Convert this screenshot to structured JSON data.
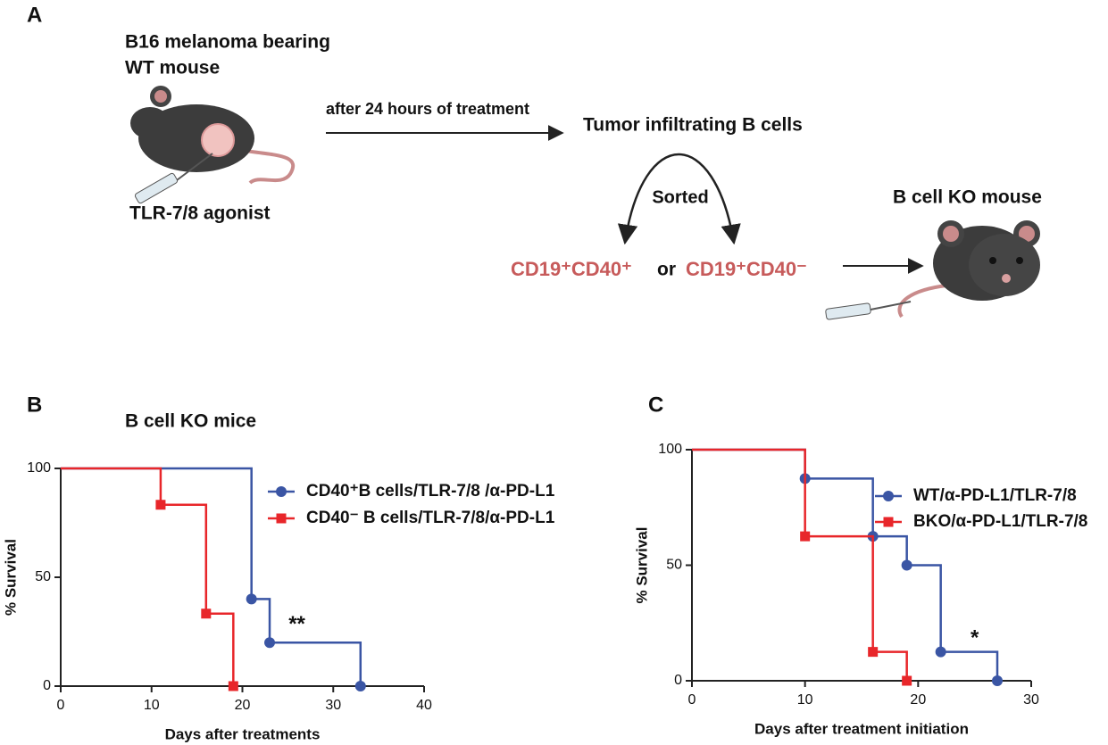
{
  "diagram": {
    "panel_label": "A",
    "mouse_title_line1": "B16 melanoma bearing",
    "mouse_title_line2": "WT mouse",
    "agonist": "TLR-7/8 agonist",
    "arrow_label": "after 24 hours of treatment",
    "cells": "Tumor infiltrating B cells",
    "sorted": "Sorted",
    "positive_cells": "CD19⁺CD40⁺",
    "or": "or",
    "negative_cells": "CD19⁺CD40⁻",
    "ko_mouse": "B cell KO mouse"
  },
  "chart_data": [
    {
      "type": "step",
      "panel_label": "B",
      "title": "B cell KO mice",
      "xlabel": "Days after treatments",
      "ylabel": "% Survival",
      "xlim": [
        0,
        40
      ],
      "xticks": [
        0,
        10,
        20,
        30,
        40
      ],
      "ylim": [
        0,
        100
      ],
      "yticks": [
        0,
        50,
        100
      ],
      "annotation": "**",
      "series": [
        {
          "name": "CD40⁺B cells/TLR-7/8 /α-PD-L1",
          "color": "#3a55a4",
          "marker": "circle",
          "x": [
            0,
            21,
            23,
            33
          ],
          "values": [
            100,
            40,
            20,
            0
          ]
        },
        {
          "name": "CD40⁻ B cells/TLR-7/8/α-PD-L1",
          "color": "#e8262a",
          "marker": "square",
          "x": [
            0,
            11,
            16,
            19
          ],
          "values": [
            100,
            83.3,
            33.3,
            0
          ]
        }
      ]
    },
    {
      "type": "step",
      "panel_label": "C",
      "xlabel": "Days after treatment initiation",
      "ylabel": "% Survival",
      "xlim": [
        0,
        30
      ],
      "xticks": [
        0,
        10,
        20,
        30
      ],
      "ylim": [
        0,
        100
      ],
      "yticks": [
        0,
        50,
        100
      ],
      "annotation": "*",
      "series": [
        {
          "name": "WT/α-PD-L1/TLR-7/8",
          "color": "#3a55a4",
          "marker": "circle",
          "x": [
            0,
            10,
            16,
            19,
            22,
            27
          ],
          "values": [
            100,
            87.5,
            62.5,
            50,
            12.5,
            0
          ]
        },
        {
          "name": "BKO/α-PD-L1/TLR-7/8",
          "color": "#e8262a",
          "marker": "square",
          "x": [
            0,
            10,
            16,
            19
          ],
          "values": [
            100,
            62.5,
            12.5,
            0
          ]
        }
      ]
    }
  ]
}
